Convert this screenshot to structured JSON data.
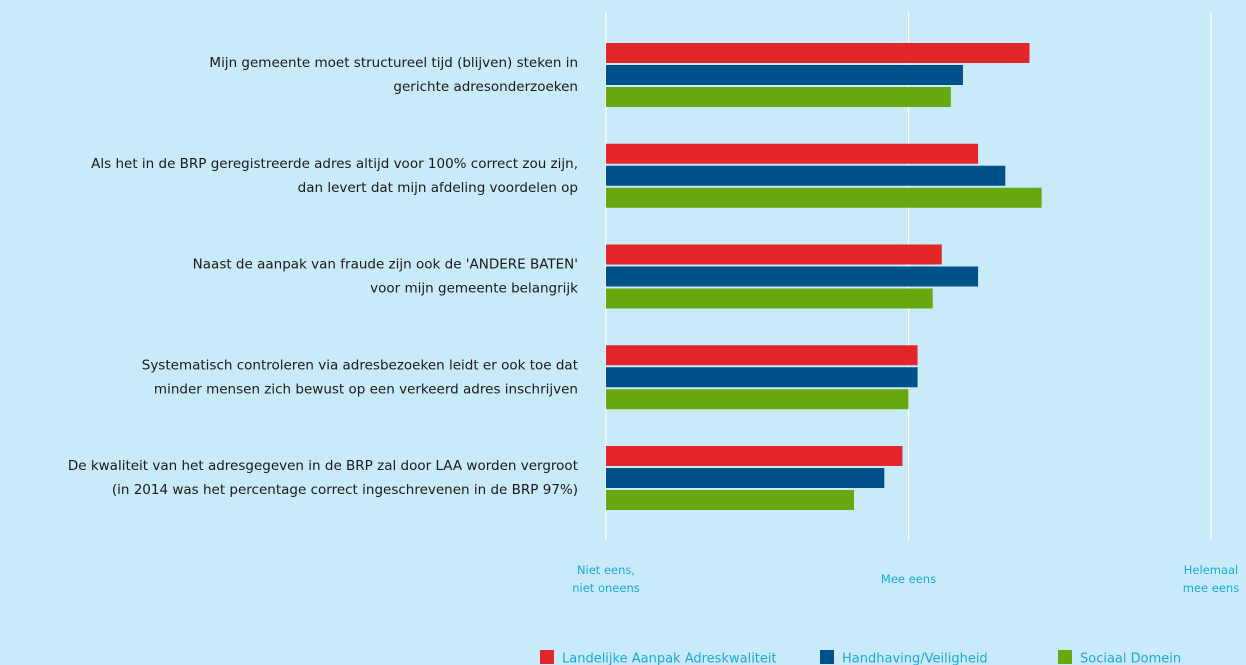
{
  "chart_data": {
    "type": "bar",
    "orientation": "horizontal",
    "categories": [
      "Mijn gemeente moet structureel tijd (blijven) steken in\ngerichte adresonderzoeken",
      "Als het in de BRP geregistreerde adres altijd voor 100% correct zou zijn,\ndan levert dat mijn afdeling voordelen op",
      "Naast de aanpak van fraude zijn ook de 'ANDERE BATEN'\nvoor mijn gemeente belangrijk",
      "Systematisch controleren via adresbezoeken leidt er ook toe dat\nminder mensen zich bewust op een verkeerd adres inschrijven",
      "De kwaliteit van het adresgegeven in de BRP zal door LAA worden vergroot\n(in 2014 was het percentage correct ingeschrevenen in de BRP 97%)"
    ],
    "series": [
      {
        "name": "Landelijke Aanpak Adreskwaliteit",
        "color": "#e3262a",
        "values": [
          4.4,
          4.23,
          4.11,
          4.03,
          3.98
        ]
      },
      {
        "name": "Handhaving/Veiligheid",
        "color": "#00508a",
        "values": [
          4.18,
          4.32,
          4.23,
          4.03,
          3.92
        ]
      },
      {
        "name": "Sociaal Domein",
        "color": "#66a80f",
        "values": [
          4.14,
          4.44,
          4.08,
          4.0,
          3.82
        ]
      }
    ],
    "xlim": [
      3,
      5
    ],
    "xticks": [
      {
        "value": 3,
        "label": "Niet eens,\nniet oneens"
      },
      {
        "value": 4,
        "label": "Mee eens"
      },
      {
        "value": 5,
        "label": "Helemaal\nmee eens"
      }
    ],
    "grid": true
  }
}
